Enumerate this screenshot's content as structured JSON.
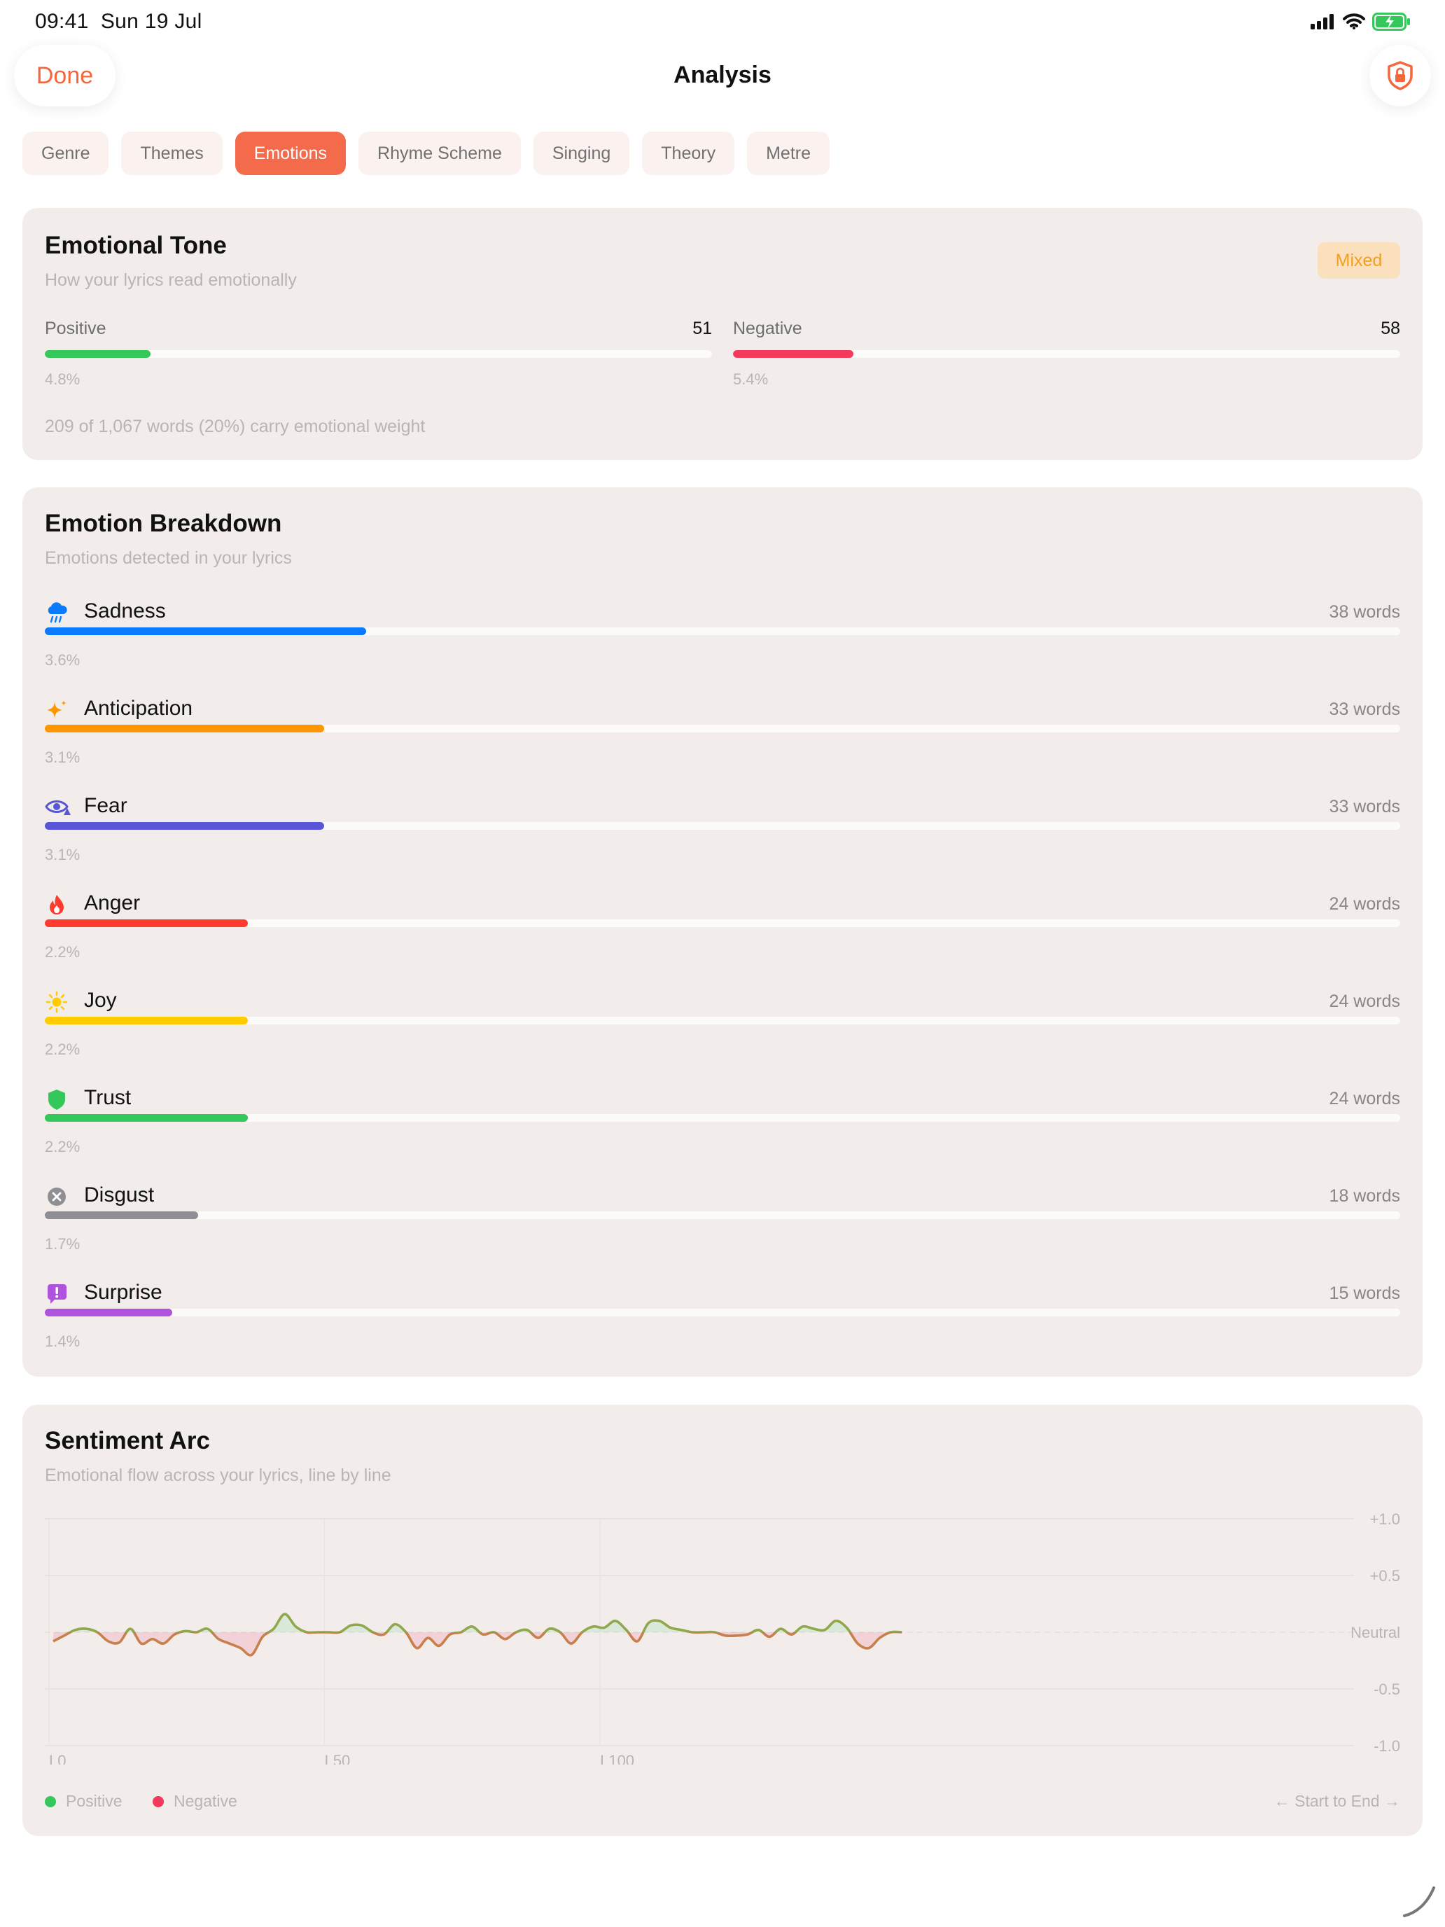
{
  "status_bar": {
    "time": "09:41",
    "date": "Sun 19 Jul"
  },
  "nav": {
    "done_label": "Done",
    "title": "Analysis",
    "lock_icon": "lock-shield-icon"
  },
  "tabs": [
    {
      "label": "Genre",
      "active": false
    },
    {
      "label": "Themes",
      "active": false
    },
    {
      "label": "Emotions",
      "active": true
    },
    {
      "label": "Rhyme Scheme",
      "active": false
    },
    {
      "label": "Singing",
      "active": false
    },
    {
      "label": "Theory",
      "active": false
    },
    {
      "label": "Metre",
      "active": false
    }
  ],
  "tone": {
    "title": "Emotional Tone",
    "subtitle": "How your lyrics read emotionally",
    "badge": "Mixed",
    "positive": {
      "label": "Positive",
      "count": "51",
      "percent": "4.8%",
      "fraction": 0.158,
      "color": "#34c759"
    },
    "negative": {
      "label": "Negative",
      "count": "58",
      "percent": "5.4%",
      "fraction": 0.18,
      "color": "#f43a5c"
    },
    "footnote": "209 of 1,067 words (20%) carry emotional weight"
  },
  "breakdown": {
    "title": "Emotion Breakdown",
    "subtitle": "Emotions detected in your lyrics",
    "items": [
      {
        "name": "Sadness",
        "count": "38 words",
        "percent": "3.6%",
        "fraction": 0.237,
        "color": "#0a7aff",
        "icon": "cloud-rain-icon"
      },
      {
        "name": "Anticipation",
        "count": "33 words",
        "percent": "3.1%",
        "fraction": 0.206,
        "color": "#ff9500",
        "icon": "sparkles-icon"
      },
      {
        "name": "Fear",
        "count": "33 words",
        "percent": "3.1%",
        "fraction": 0.206,
        "color": "#5856d6",
        "icon": "eye-alert-icon"
      },
      {
        "name": "Anger",
        "count": "24 words",
        "percent": "2.2%",
        "fraction": 0.15,
        "color": "#ff3b30",
        "icon": "flame-icon"
      },
      {
        "name": "Joy",
        "count": "24 words",
        "percent": "2.2%",
        "fraction": 0.15,
        "color": "#ffcc00",
        "icon": "sun-icon"
      },
      {
        "name": "Trust",
        "count": "24 words",
        "percent": "2.2%",
        "fraction": 0.15,
        "color": "#34c759",
        "icon": "shield-icon"
      },
      {
        "name": "Disgust",
        "count": "18 words",
        "percent": "1.7%",
        "fraction": 0.113,
        "color": "#8e8e93",
        "icon": "x-circle-icon"
      },
      {
        "name": "Surprise",
        "count": "15 words",
        "percent": "1.4%",
        "fraction": 0.094,
        "color": "#af52de",
        "icon": "exclamation-bubble-icon"
      }
    ]
  },
  "arc": {
    "title": "Sentiment Arc",
    "subtitle": "Emotional flow across your lyrics, line by line",
    "legend_positive": "Positive",
    "legend_negative": "Negative",
    "direction": "← Start to End →",
    "positive_color": "#34c759",
    "negative_color": "#f43a5c"
  },
  "chart_data": {
    "type": "line",
    "y_ticks": [
      "+1.0",
      "+0.5",
      "Neutral",
      "-0.5",
      "-1.0"
    ],
    "x_ticks": [
      "L0",
      "L50",
      "L100"
    ],
    "ylim": [
      -1,
      1
    ],
    "xlim": [
      0,
      154
    ],
    "grid": true,
    "legend": "bottom-left",
    "x": [
      0,
      2,
      4,
      6,
      8,
      10,
      12,
      14,
      16,
      18,
      20,
      22,
      24,
      26,
      28,
      30,
      32,
      34,
      36,
      38,
      40,
      42,
      44,
      46,
      48,
      50,
      52,
      54,
      56,
      58,
      60,
      62,
      64,
      66,
      68,
      70,
      72,
      74,
      76,
      78,
      80,
      82,
      84,
      86,
      88,
      90,
      92,
      94,
      96,
      98,
      100,
      102,
      104,
      106,
      108,
      110,
      112,
      114,
      116,
      118,
      120,
      122,
      124,
      126,
      128,
      130,
      132,
      134,
      136,
      138,
      140,
      142,
      144,
      146,
      148,
      150,
      152,
      154
    ],
    "y": [
      -0.08,
      -0.03,
      0.02,
      0.03,
      0.0,
      -0.08,
      -0.09,
      0.03,
      -0.1,
      -0.06,
      -0.1,
      -0.02,
      0.01,
      0.0,
      0.03,
      -0.06,
      -0.1,
      -0.14,
      -0.2,
      -0.04,
      0.03,
      0.16,
      0.05,
      0.0,
      0.0,
      0.0,
      0.0,
      0.06,
      0.06,
      0.0,
      -0.02,
      0.07,
      0.0,
      -0.14,
      -0.05,
      -0.12,
      -0.02,
      0.0,
      0.05,
      -0.02,
      0.0,
      -0.06,
      0.0,
      0.02,
      -0.05,
      0.03,
      0.0,
      -0.1,
      0.0,
      0.05,
      0.04,
      0.1,
      0.02,
      -0.08,
      0.08,
      0.1,
      0.04,
      0.02,
      0.0,
      0.0,
      0.0,
      -0.03,
      -0.03,
      -0.02,
      0.02,
      -0.04,
      0.03,
      -0.02,
      0.05,
      0.03,
      0.02,
      0.1,
      0.04,
      -0.1,
      -0.14,
      -0.05,
      0.0,
      0.0
    ]
  }
}
